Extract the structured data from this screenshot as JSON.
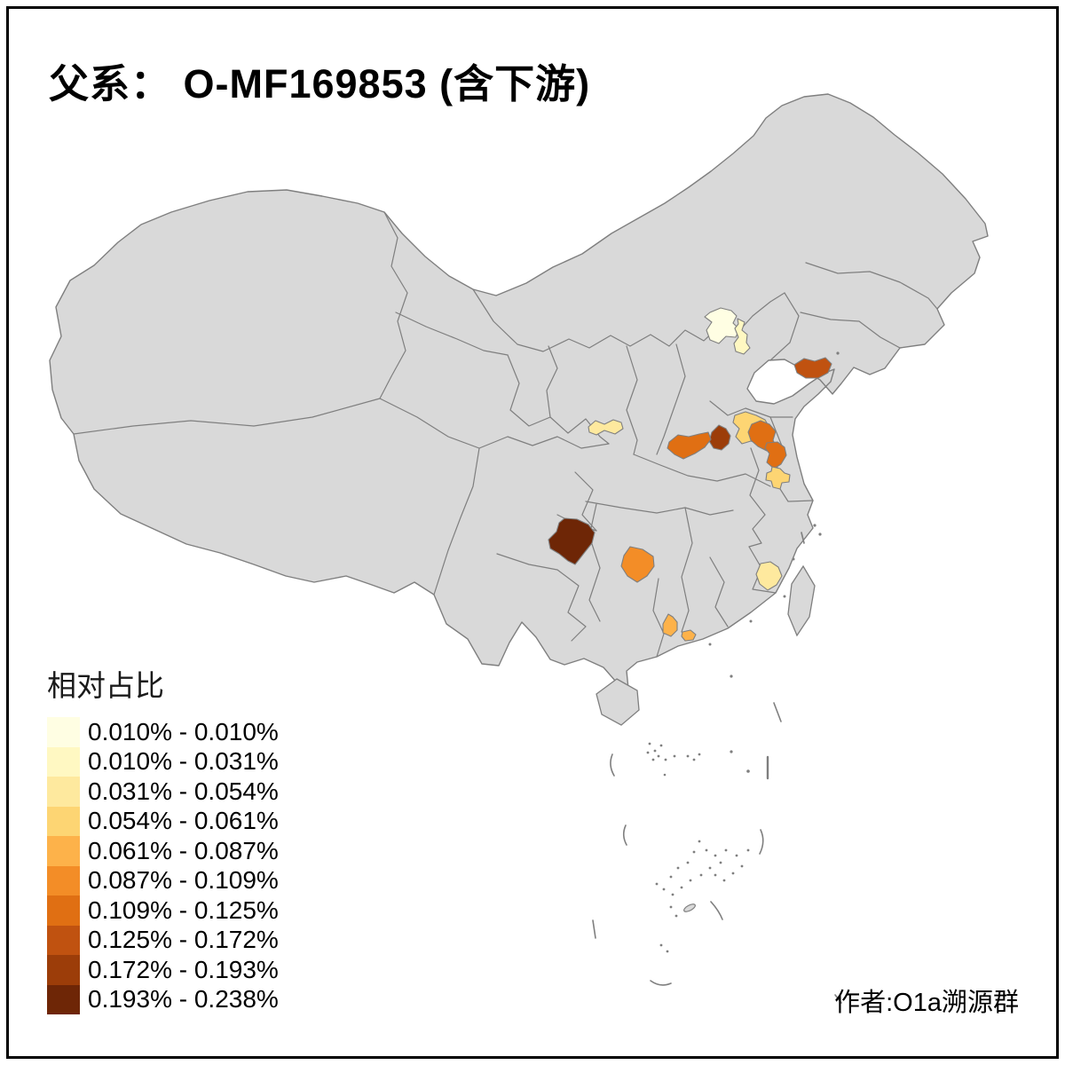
{
  "page": {
    "title": "父系： O-MF169853 (含下游)",
    "attribution": "作者:O1a溯源群"
  },
  "legend": {
    "title": "相对占比",
    "classes": [
      {
        "label": "0.010% - 0.010%",
        "color": "#FFFEE3"
      },
      {
        "label": "0.010% - 0.031%",
        "color": "#FFF8C2"
      },
      {
        "label": "0.031% - 0.054%",
        "color": "#FEE99E"
      },
      {
        "label": "0.054% - 0.061%",
        "color": "#FDD573"
      },
      {
        "label": "0.061% - 0.087%",
        "color": "#FDB24A"
      },
      {
        "label": "0.087% - 0.109%",
        "color": "#F38D27"
      },
      {
        "label": "0.109% - 0.125%",
        "color": "#E06F13"
      },
      {
        "label": "0.125% - 0.172%",
        "color": "#C05210"
      },
      {
        "label": "0.172% - 0.193%",
        "color": "#9C3D09"
      },
      {
        "label": "0.193% - 0.238%",
        "color": "#6E2606"
      }
    ]
  },
  "map": {
    "land_color": "#D9D9D9",
    "border_color": "#7F7F7F",
    "sea_color": "#FFFFFF"
  },
  "map_regions": [
    {
      "id": "r1",
      "class_index": 0
    },
    {
      "id": "r2",
      "class_index": 1
    },
    {
      "id": "r3",
      "class_index": 2
    },
    {
      "id": "r4",
      "class_index": 3
    },
    {
      "id": "r5",
      "class_index": 6
    },
    {
      "id": "r6",
      "class_index": 6
    },
    {
      "id": "r7",
      "class_index": 3
    },
    {
      "id": "r8",
      "class_index": 8
    },
    {
      "id": "r9",
      "class_index": 6
    },
    {
      "id": "r10",
      "class_index": 7
    },
    {
      "id": "r11",
      "class_index": 9
    },
    {
      "id": "r12",
      "class_index": 5
    },
    {
      "id": "r13",
      "class_index": 4
    },
    {
      "id": "r14",
      "class_index": 4
    },
    {
      "id": "r15",
      "class_index": 2
    }
  ]
}
